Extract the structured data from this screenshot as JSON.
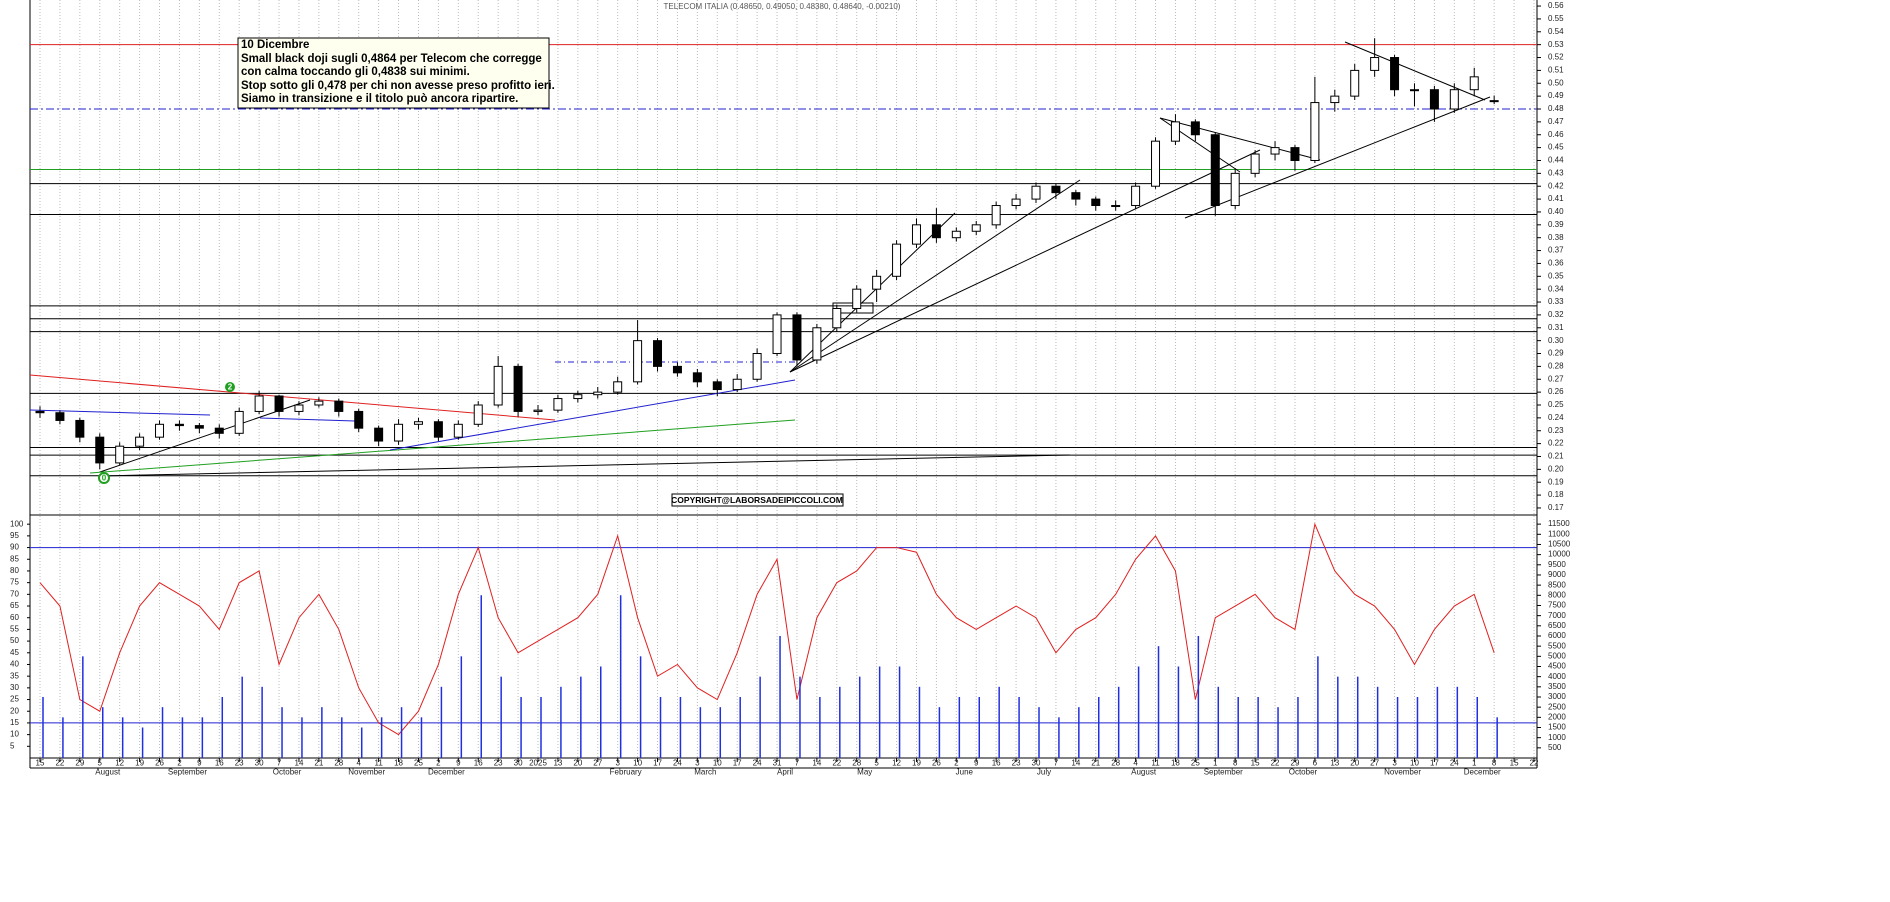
{
  "chart_data": [
    {
      "type": "candlestick",
      "title": "TELECOM ITALIA (0.48650, 0.49050, 0.48380, 0.48640, -0.00210)",
      "categories": [
        "15",
        "22",
        "29",
        "5",
        "12",
        "19",
        "26",
        "2",
        "9",
        "16",
        "23",
        "30",
        "7",
        "14",
        "21",
        "28",
        "4",
        "11",
        "18",
        "25",
        "2",
        "9",
        "16",
        "23",
        "30",
        "2025",
        "13",
        "20",
        "27",
        "3",
        "10",
        "17",
        "24",
        "3",
        "10",
        "17",
        "24",
        "31",
        "7",
        "14",
        "22",
        "28",
        "5",
        "12",
        "19",
        "26",
        "2",
        "9",
        "16",
        "23",
        "30",
        "7",
        "14",
        "21",
        "28",
        "4",
        "11",
        "18",
        "25",
        "1",
        "8",
        "15",
        "22",
        "29",
        "6",
        "13",
        "20",
        "27",
        "3",
        "10",
        "17",
        "24",
        "1",
        "8",
        "15",
        "22"
      ],
      "month_labels": [
        "August",
        "September",
        "October",
        "November",
        "December",
        "February",
        "March",
        "April",
        "May",
        "June",
        "July",
        "August",
        "September",
        "October",
        "November",
        "December"
      ],
      "open": [
        0.245,
        0.244,
        0.238,
        0.225,
        0.205,
        0.218,
        0.225,
        0.235,
        0.234,
        0.232,
        0.228,
        0.245,
        0.257,
        0.245,
        0.25,
        0.253,
        0.245,
        0.232,
        0.222,
        0.235,
        0.237,
        0.225,
        0.235,
        0.25,
        0.28,
        0.245,
        0.246,
        0.255,
        0.258,
        0.26,
        0.268,
        0.3,
        0.28,
        0.275,
        0.268,
        0.262,
        0.27,
        0.29,
        0.32,
        0.285,
        0.31,
        0.325,
        0.34,
        0.35,
        0.375,
        0.39,
        0.38,
        0.385,
        0.39,
        0.405,
        0.41,
        0.42,
        0.415,
        0.41,
        0.405,
        0.405,
        0.42,
        0.455,
        0.47,
        0.46,
        0.405,
        0.43,
        0.445,
        0.45,
        0.44,
        0.485,
        0.49,
        0.51,
        0.52,
        0.495,
        0.495,
        0.48,
        0.495,
        0.4865,
        null,
        null
      ],
      "high": [
        0.249,
        0.246,
        0.24,
        0.228,
        0.221,
        0.228,
        0.238,
        0.238,
        0.236,
        0.235,
        0.248,
        0.261,
        0.258,
        0.253,
        0.256,
        0.255,
        0.247,
        0.234,
        0.239,
        0.24,
        0.239,
        0.238,
        0.253,
        0.288,
        0.282,
        0.25,
        0.258,
        0.261,
        0.264,
        0.272,
        0.316,
        0.302,
        0.283,
        0.278,
        0.27,
        0.274,
        0.294,
        0.322,
        0.322,
        0.313,
        0.328,
        0.343,
        0.355,
        0.378,
        0.395,
        0.403,
        0.388,
        0.393,
        0.408,
        0.414,
        0.423,
        0.422,
        0.417,
        0.412,
        0.409,
        0.423,
        0.458,
        0.476,
        0.472,
        0.462,
        0.434,
        0.448,
        0.455,
        0.452,
        0.505,
        0.495,
        0.515,
        0.535,
        0.522,
        0.5,
        0.498,
        0.5,
        0.512,
        0.4905,
        null,
        null
      ],
      "low": [
        0.24,
        0.235,
        0.221,
        0.2,
        0.203,
        0.215,
        0.223,
        0.23,
        0.228,
        0.224,
        0.226,
        0.243,
        0.241,
        0.242,
        0.248,
        0.241,
        0.229,
        0.218,
        0.219,
        0.231,
        0.222,
        0.223,
        0.233,
        0.248,
        0.241,
        0.242,
        0.244,
        0.252,
        0.255,
        0.258,
        0.266,
        0.276,
        0.272,
        0.264,
        0.257,
        0.26,
        0.268,
        0.288,
        0.28,
        0.282,
        0.307,
        0.322,
        0.33,
        0.347,
        0.372,
        0.376,
        0.377,
        0.382,
        0.387,
        0.402,
        0.407,
        0.41,
        0.405,
        0.401,
        0.401,
        0.402,
        0.418,
        0.452,
        0.455,
        0.397,
        0.402,
        0.427,
        0.44,
        0.432,
        0.438,
        0.478,
        0.487,
        0.505,
        0.49,
        0.482,
        0.47,
        0.477,
        0.49,
        0.4838,
        null,
        null
      ],
      "close": [
        0.244,
        0.238,
        0.225,
        0.205,
        0.218,
        0.225,
        0.235,
        0.234,
        0.232,
        0.228,
        0.245,
        0.257,
        0.245,
        0.25,
        0.253,
        0.245,
        0.232,
        0.222,
        0.235,
        0.237,
        0.225,
        0.235,
        0.25,
        0.28,
        0.245,
        0.246,
        0.255,
        0.258,
        0.26,
        0.268,
        0.3,
        0.28,
        0.275,
        0.268,
        0.262,
        0.27,
        0.29,
        0.32,
        0.285,
        0.31,
        0.325,
        0.34,
        0.35,
        0.375,
        0.39,
        0.38,
        0.385,
        0.39,
        0.405,
        0.41,
        0.42,
        0.415,
        0.41,
        0.405,
        0.405,
        0.42,
        0.455,
        0.47,
        0.46,
        0.405,
        0.43,
        0.445,
        0.45,
        0.44,
        0.485,
        0.49,
        0.51,
        0.52,
        0.495,
        0.495,
        0.48,
        0.495,
        0.505,
        0.4864,
        null,
        null
      ],
      "up_color": "#ffffff",
      "down_color": "#000000",
      "ylim": [
        0.1653,
        0.5647
      ],
      "yticks": [
        0.56,
        0.55,
        0.54,
        0.53,
        0.52,
        0.51,
        {
          "value": 0.5,
          "label": "0.50"
        },
        0.49,
        0.48,
        0.47,
        0.46,
        0.45,
        0.44,
        0.43,
        0.42,
        0.41,
        {
          "value": 0.4,
          "label": "0.40"
        },
        0.39,
        0.38,
        0.37,
        0.36,
        0.35,
        0.34,
        0.33,
        0.32,
        0.31,
        {
          "value": 0.3,
          "label": "0.30"
        },
        0.29,
        0.28,
        0.27,
        0.26,
        0.25,
        0.24,
        0.23,
        0.22,
        0.21,
        {
          "value": 0.2,
          "label": "0.20"
        },
        0.19,
        0.18,
        0.17
      ],
      "levels": [
        {
          "value": 0.53,
          "color": "#e02020"
        },
        {
          "value": 0.48,
          "color": "#2020d0",
          "dash": true
        },
        {
          "value": 0.433,
          "color": "#20a020"
        },
        {
          "value": 0.422,
          "color": "#000000"
        },
        {
          "value": 0.398,
          "color": "#000000"
        },
        {
          "value": 0.327,
          "color": "#000000"
        },
        {
          "value": 0.317,
          "color": "#000000"
        },
        {
          "value": 0.307,
          "color": "#000000"
        },
        {
          "value": 0.259,
          "color": "#000000"
        },
        {
          "value": 0.217,
          "color": "#000000"
        },
        {
          "value": 0.211,
          "color": "#000000"
        },
        {
          "value": 0.195,
          "color": "#000000"
        }
      ],
      "annotation": [
        "10 Dicembre",
        "Small black doji sugli 0,4864 per Telecom che corregge",
        "con calma toccando gli 0,4838 sui minimi.",
        "Stop sotto gli 0,478 per chi non avesse preso profitto ieri.",
        "Siamo in transizione e il titolo può ancora ripartire."
      ],
      "wave_labels": [
        "0",
        "2"
      ],
      "copyright": "COPYRIGHT@LABORSADEIPICCOLI.COM"
    },
    {
      "type": "line",
      "series": [
        {
          "name": "oscillator",
          "color": "#e02020",
          "values": [
            75,
            65,
            25,
            20,
            45,
            65,
            75,
            70,
            65,
            55,
            75,
            80,
            40,
            60,
            70,
            55,
            30,
            15,
            10,
            20,
            40,
            70,
            90,
            60,
            45,
            50,
            55,
            60,
            70,
            95,
            60,
            35,
            40,
            30,
            25,
            45,
            70,
            85,
            25,
            60,
            75,
            80,
            90,
            90,
            88,
            70,
            60,
            55,
            60,
            65,
            60,
            45,
            55,
            60,
            70,
            85,
            95,
            80,
            25,
            60,
            65,
            70,
            60,
            55,
            100,
            80,
            70,
            65,
            55,
            40,
            55,
            65,
            70,
            45,
            null,
            null
          ]
        },
        {
          "name": "volume",
          "type": "bar",
          "axis": "y2",
          "color": "#2030e0",
          "values": [
            3000,
            2000,
            5000,
            2500,
            2000,
            1500,
            2500,
            2000,
            2000,
            3000,
            4000,
            3500,
            2500,
            2000,
            2500,
            2000,
            1500,
            2000,
            2500,
            2000,
            3500,
            5000,
            8000,
            4000,
            3000,
            3000,
            3500,
            4000,
            4500,
            8000,
            5000,
            3000,
            3000,
            2500,
            2500,
            3000,
            4000,
            6000,
            4000,
            3000,
            3500,
            4000,
            4500,
            4500,
            3500,
            2500,
            3000,
            3000,
            3500,
            3000,
            2500,
            2000,
            2500,
            3000,
            3500,
            4500,
            5500,
            4500,
            6000,
            3500,
            3000,
            3000,
            2500,
            3000,
            5000,
            4000,
            4000,
            3500,
            3000,
            3000,
            3500,
            3500,
            3000,
            2000,
            null,
            null
          ]
        }
      ],
      "ylim": [
        0,
        103.5
      ],
      "yticks": [
        100,
        95,
        90,
        85,
        80,
        75,
        70,
        65,
        60,
        55,
        50,
        45,
        40,
        35,
        30,
        25,
        20,
        15,
        10,
        5
      ],
      "y2lim": [
        0,
        11900
      ],
      "y2ticks": [
        11500,
        11000,
        10500,
        10000,
        9500,
        9000,
        8500,
        8000,
        7500,
        7000,
        6500,
        6000,
        5500,
        5000,
        4500,
        4000,
        3500,
        3000,
        2500,
        2000,
        1500,
        1000,
        500
      ],
      "levels": [
        {
          "value": 90,
          "color": "#2020d0"
        },
        {
          "value": 15,
          "color": "#2020d0"
        }
      ]
    }
  ]
}
